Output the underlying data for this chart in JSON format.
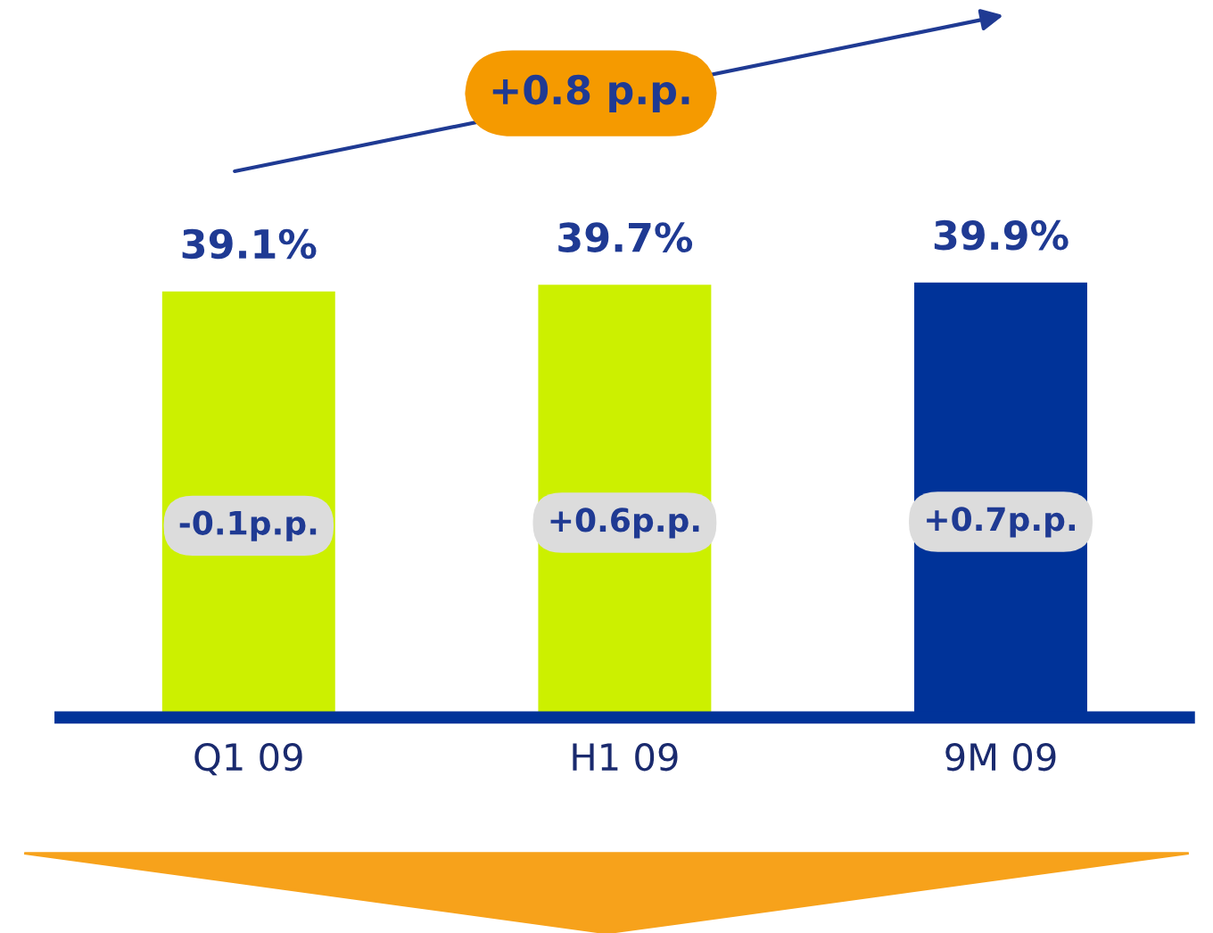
{
  "chart_data": {
    "type": "bar",
    "categories": [
      "Q1 09",
      "H1 09",
      "9M 09"
    ],
    "values": [
      39.1,
      39.7,
      39.9
    ],
    "colors": [
      "#ccf000",
      "#ccf000",
      "#003399"
    ],
    "value_labels": [
      "39.1%",
      "39.7%",
      "39.9%"
    ],
    "annotations": [
      "-0.1p.p.",
      "+0.6p.p.",
      "+0.7p.p.",
      "+0.8 p.p."
    ],
    "tick_labels": "x",
    "grid": false,
    "legend": false
  }
}
